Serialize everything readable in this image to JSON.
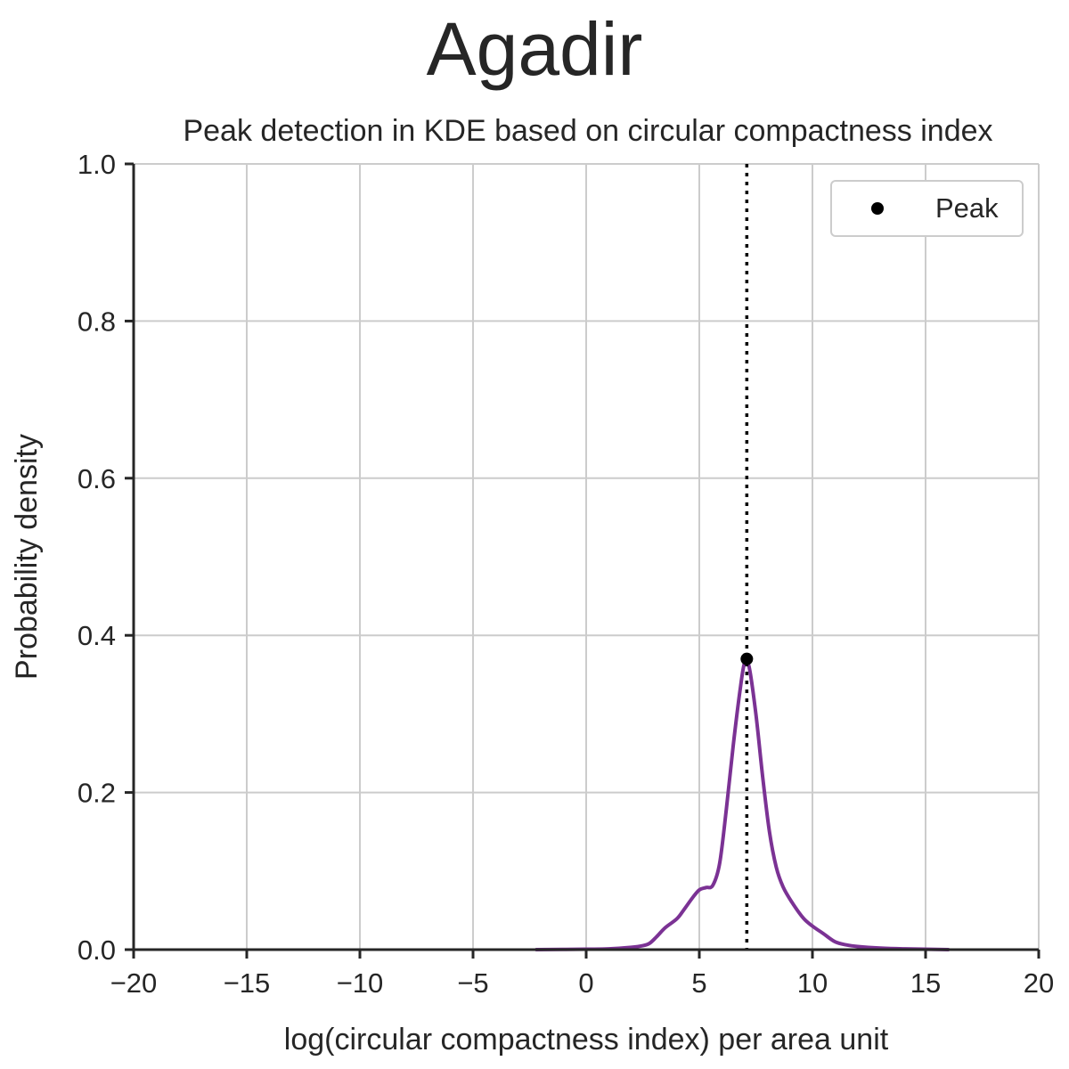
{
  "figure": {
    "suptitle": "Agadir"
  },
  "chart_data": {
    "type": "line",
    "title": "Peak detection in KDE based on circular compactness index",
    "xlabel": "log(circular compactness index) per area unit",
    "ylabel": "Probability density",
    "xlim": [
      -20,
      20
    ],
    "ylim": [
      0,
      1.0
    ],
    "x_ticks": [
      -20,
      -15,
      -10,
      -5,
      0,
      5,
      10,
      15,
      20
    ],
    "x_tick_labels": [
      "−20",
      "−15",
      "−10",
      "−5",
      "0",
      "5",
      "10",
      "15",
      "20"
    ],
    "y_ticks": [
      0.0,
      0.2,
      0.4,
      0.6,
      0.8,
      1.0
    ],
    "y_tick_labels": [
      "0.0",
      "0.2",
      "0.4",
      "0.6",
      "0.8",
      "1.0"
    ],
    "grid": true,
    "legend_position": "top-right",
    "legend": [
      {
        "label": "Peak",
        "marker": "circle",
        "color": "#000000"
      }
    ],
    "series": [
      {
        "type": "line",
        "color": "#7b3294",
        "x": [
          -2.2,
          0,
          1,
          2,
          2.5,
          2.8,
          3.1,
          3.5,
          4.0,
          4.3,
          4.7,
          5.0,
          5.3,
          5.6,
          5.9,
          6.2,
          6.5,
          6.8,
          7.0,
          7.2,
          7.5,
          7.8,
          8.1,
          8.4,
          8.7,
          9.1,
          9.6,
          10.0,
          10.5,
          11.0,
          11.5,
          12.0,
          13.0,
          14.0,
          16.0
        ],
        "y": [
          0.0,
          0.0005,
          0.001,
          0.003,
          0.005,
          0.008,
          0.016,
          0.028,
          0.039,
          0.05,
          0.066,
          0.076,
          0.079,
          0.082,
          0.11,
          0.18,
          0.26,
          0.33,
          0.365,
          0.36,
          0.3,
          0.22,
          0.15,
          0.105,
          0.08,
          0.06,
          0.04,
          0.03,
          0.02,
          0.01,
          0.006,
          0.004,
          0.002,
          0.001,
          0.0
        ]
      }
    ],
    "peak": {
      "x": 7.1,
      "y": 0.37,
      "color": "#000000"
    },
    "vline": {
      "x": 7.1,
      "style": "dotted",
      "color": "#000000"
    },
    "colors": {
      "grid": "#cccccc",
      "axis": "#262626",
      "kde": "#7b3294"
    }
  }
}
